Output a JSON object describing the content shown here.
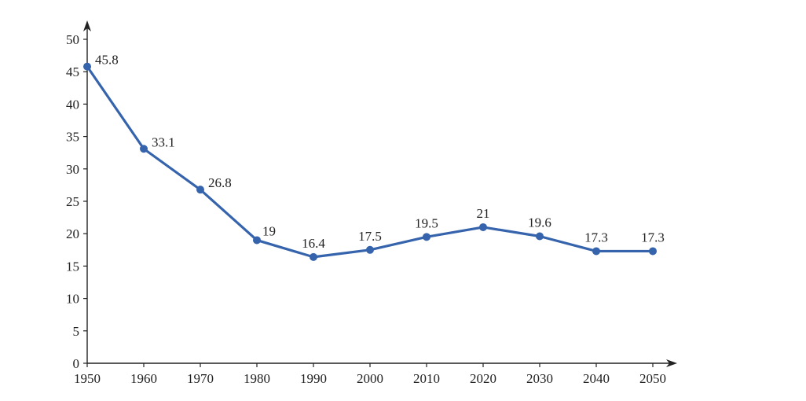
{
  "chart_data": {
    "type": "line",
    "title": "",
    "xlabel": "",
    "ylabel": "",
    "x": [
      1950,
      1960,
      1970,
      1980,
      1990,
      2000,
      2010,
      2020,
      2030,
      2040,
      2050
    ],
    "series": [
      {
        "name": "series-1",
        "values": [
          45.8,
          33.1,
          26.8,
          19,
          16.4,
          17.5,
          19.5,
          21,
          19.6,
          17.3,
          17.3
        ],
        "labels": [
          "45.8",
          "33.1",
          "26.8",
          "19",
          "16.4",
          "17.5",
          "19.5",
          "21",
          "19.6",
          "17.3",
          "17.3"
        ],
        "color": "#3563ac"
      }
    ],
    "xticks": [
      "1950",
      "1960",
      "1970",
      "1980",
      "1990",
      "2000",
      "2010",
      "2020",
      "2030",
      "2040",
      "2050"
    ],
    "yticks": [
      "0",
      "5",
      "10",
      "15",
      "20",
      "25",
      "30",
      "35",
      "40",
      "45",
      "50"
    ],
    "xlim": [
      1950,
      2050
    ],
    "ylim": [
      0,
      50
    ],
    "grid": false,
    "legend": "none"
  }
}
